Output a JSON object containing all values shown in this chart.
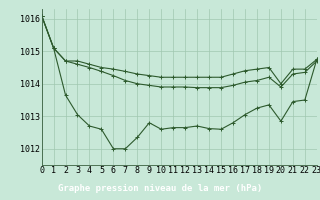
{
  "title": "Graphe pression niveau de la mer (hPa)",
  "background_color": "#c8e8d8",
  "plot_bg_color": "#c8e8d8",
  "footer_bg_color": "#2d5a2d",
  "footer_text_color": "#ffffff",
  "grid_color": "#a0c8b0",
  "line_color": "#2d5a2d",
  "xlim": [
    0,
    23
  ],
  "ylim": [
    1011.5,
    1016.3
  ],
  "yticks": [
    1012,
    1013,
    1014,
    1015,
    1016
  ],
  "xticks": [
    0,
    1,
    2,
    3,
    4,
    5,
    6,
    7,
    8,
    9,
    10,
    11,
    12,
    13,
    14,
    15,
    16,
    17,
    18,
    19,
    20,
    21,
    22,
    23
  ],
  "hours": [
    0,
    1,
    2,
    3,
    4,
    5,
    6,
    7,
    8,
    9,
    10,
    11,
    12,
    13,
    14,
    15,
    16,
    17,
    18,
    19,
    20,
    21,
    22,
    23
  ],
  "line1": [
    1016.1,
    1015.1,
    1014.7,
    1014.7,
    1014.6,
    1014.5,
    1014.45,
    1014.38,
    1014.3,
    1014.25,
    1014.2,
    1014.2,
    1014.2,
    1014.2,
    1014.2,
    1014.2,
    1014.3,
    1014.4,
    1014.45,
    1014.5,
    1014.0,
    1014.45,
    1014.45,
    1014.75
  ],
  "line2": [
    1016.1,
    1015.1,
    1014.7,
    1014.6,
    1014.5,
    1014.38,
    1014.25,
    1014.1,
    1014.0,
    1013.95,
    1013.9,
    1013.9,
    1013.9,
    1013.88,
    1013.88,
    1013.88,
    1013.95,
    1014.05,
    1014.1,
    1014.2,
    1013.9,
    1014.3,
    1014.35,
    1014.7
  ],
  "line3": [
    1016.1,
    1015.1,
    1013.65,
    1013.05,
    1012.7,
    1012.6,
    1012.0,
    1012.0,
    1012.35,
    1012.8,
    1012.6,
    1012.65,
    1012.65,
    1012.7,
    1012.62,
    1012.6,
    1012.8,
    1013.05,
    1013.25,
    1013.35,
    1012.85,
    1013.45,
    1013.5,
    1014.75
  ],
  "marker": "+",
  "marker_size": 3,
  "linewidth": 0.8,
  "tick_fontsize": 6,
  "title_fontsize": 6.5
}
